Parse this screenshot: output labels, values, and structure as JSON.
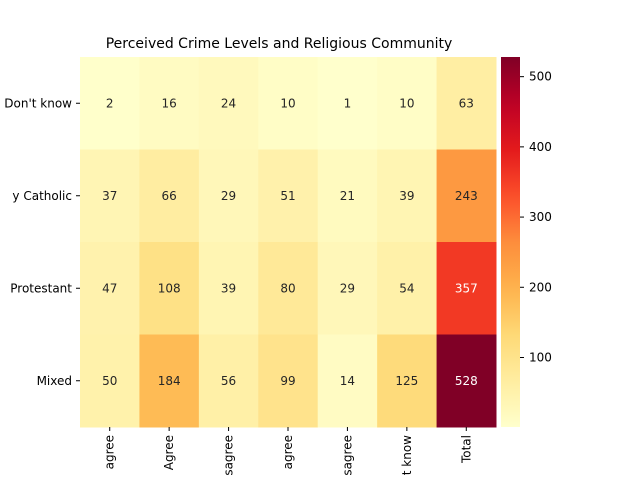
{
  "chart_data": {
    "type": "heatmap",
    "title": "Perceived Crime Levels and Religious Community",
    "rows": [
      "Don't know",
      "Mainly Catholic",
      "Mainly Protestant",
      "Mixed"
    ],
    "row_tick_labels": [
      "Don't know",
      "y Catholic",
      "Protestant",
      "Mixed"
    ],
    "columns": [
      "Strongly agree",
      "Agree",
      "Neither agree nor disagree",
      "Disagree",
      "Strongly disagree",
      "Don't know",
      "Total"
    ],
    "column_tick_labels": [
      "agree",
      "Agree",
      "sagree",
      "agree",
      "sagree",
      "t know",
      "Total"
    ],
    "values": [
      [
        2,
        16,
        24,
        10,
        1,
        10,
        63
      ],
      [
        37,
        66,
        29,
        51,
        21,
        39,
        243
      ],
      [
        47,
        108,
        39,
        80,
        29,
        54,
        357
      ],
      [
        50,
        184,
        56,
        99,
        14,
        125,
        528
      ]
    ],
    "colormap": "YlOrRd",
    "vmin": 1,
    "vmax": 528,
    "colorbar_ticks": [
      100,
      200,
      300,
      400,
      500
    ],
    "xlabel": "",
    "ylabel": "",
    "grid": false,
    "legend": "colorbar-right"
  }
}
